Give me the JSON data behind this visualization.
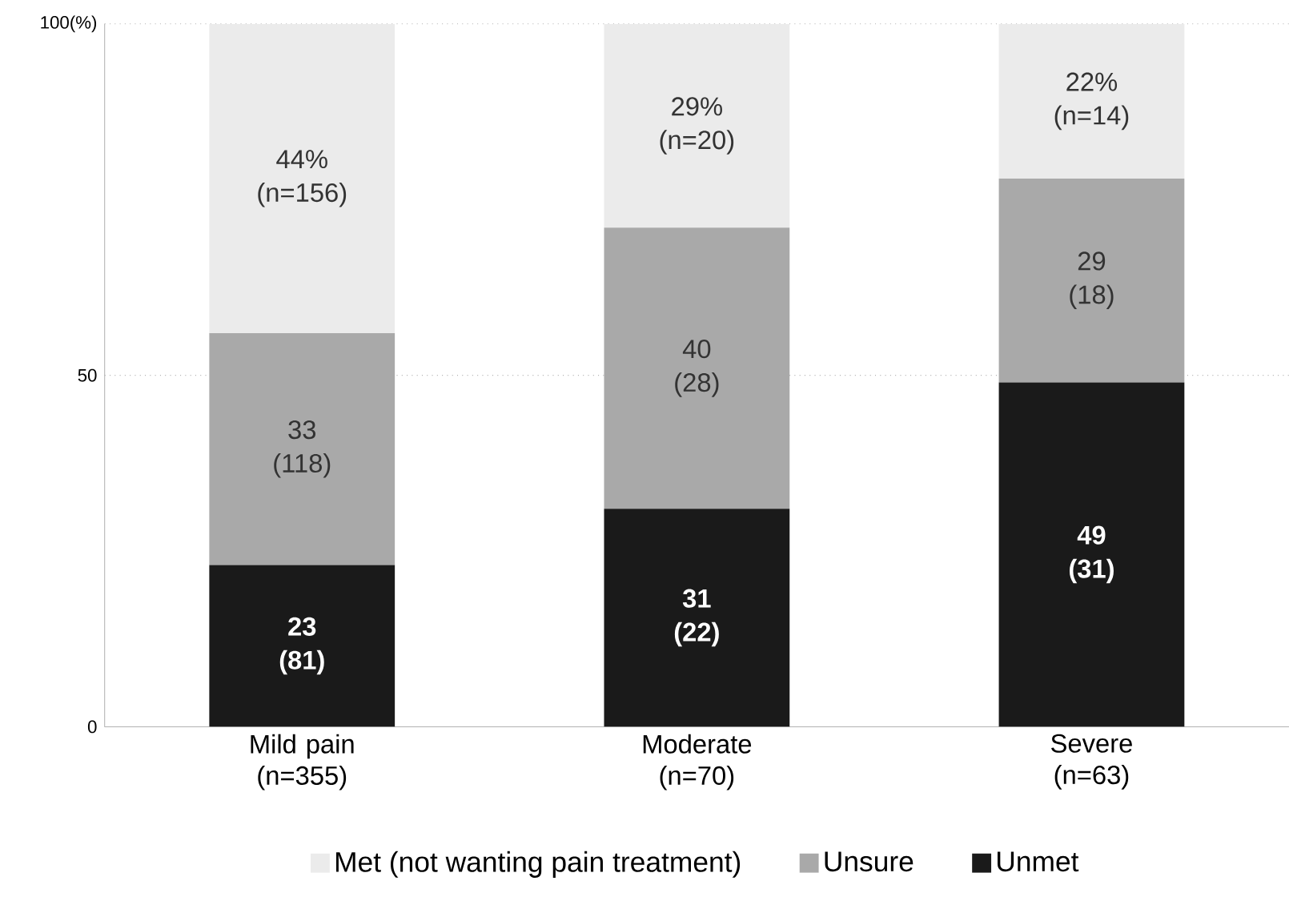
{
  "chart_data": {
    "type": "bar",
    "stacked": true,
    "categories": [
      "Mild pain (n=355)",
      "Moderate (n=70)",
      "Severe (n=63)"
    ],
    "series": [
      {
        "name": "Unmet",
        "color": "#1a1a1a",
        "values": [
          23,
          31,
          49
        ],
        "value_labels": [
          "23 (81)",
          "31 (22)",
          "49 (31)"
        ]
      },
      {
        "name": "Unsure",
        "color": "#a9a9a9",
        "values": [
          33,
          40,
          29
        ],
        "value_labels": [
          "33 (118)",
          "40 (28)",
          "29 (18)"
        ]
      },
      {
        "name": "Met (not wanting pain treatment)",
        "color": "#ebebeb",
        "values": [
          44,
          29,
          22
        ],
        "value_labels": [
          "44% (n=156)",
          "29% (n=20)",
          "22% (n=14)"
        ]
      }
    ],
    "ylim": [
      0,
      100
    ],
    "yticks": [
      0,
      50,
      {
        "value": 100,
        "label": "100(%)"
      }
    ],
    "grid": "y",
    "legend": "bottom"
  }
}
